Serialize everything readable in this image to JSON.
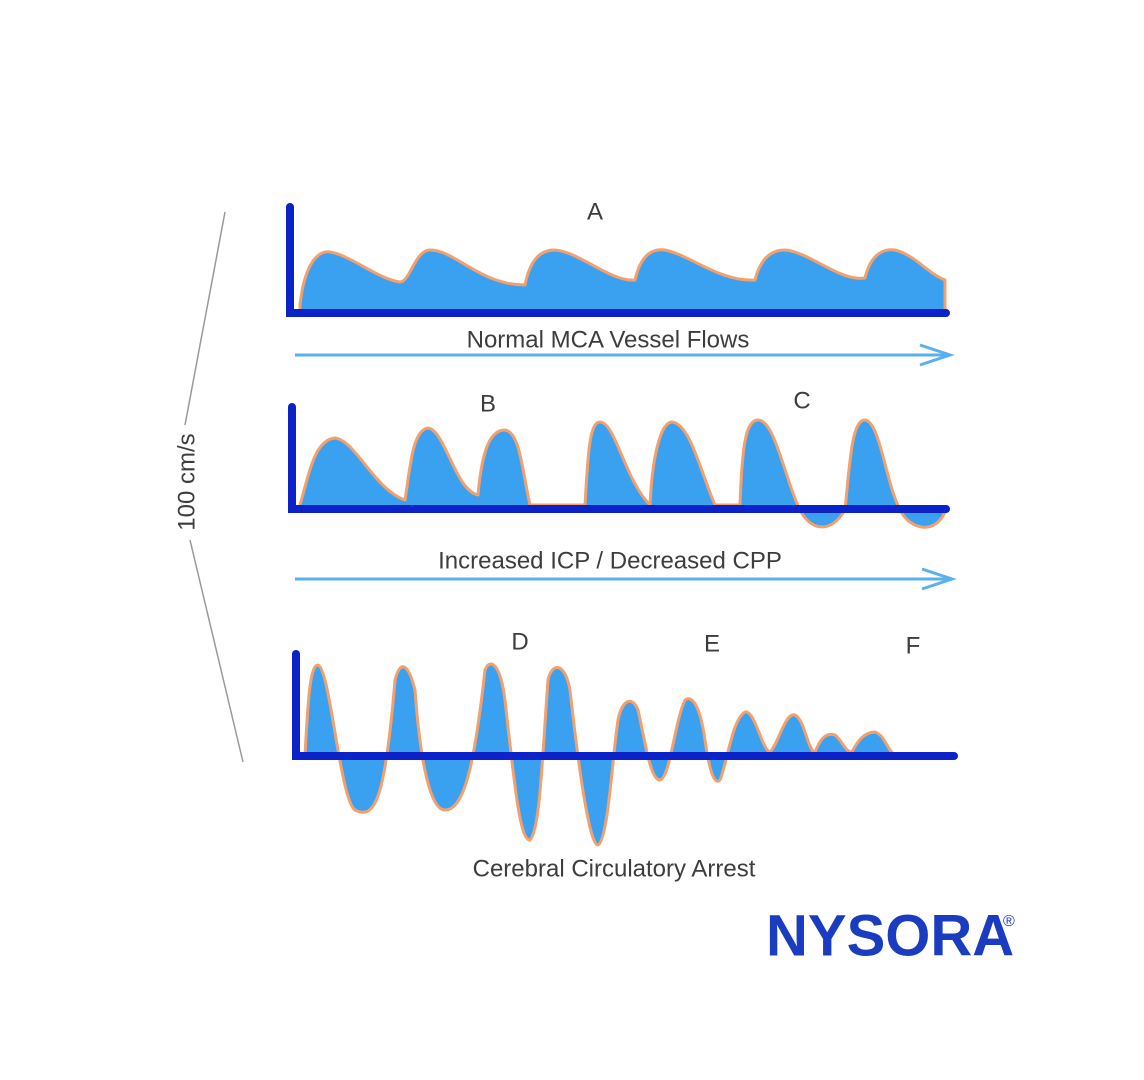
{
  "scale_label": "100 cm/s",
  "panels": [
    {
      "labels": [
        "A"
      ],
      "caption": "Normal MCA Vessel Flows"
    },
    {
      "labels": [
        "B",
        "C"
      ],
      "caption": "Increased ICP / Decreased CPP"
    },
    {
      "labels": [
        "D",
        "E",
        "F"
      ],
      "caption": "Cerebral Circulatory Arrest"
    }
  ],
  "logo": {
    "text": "NYSORA",
    "mark": "®"
  }
}
